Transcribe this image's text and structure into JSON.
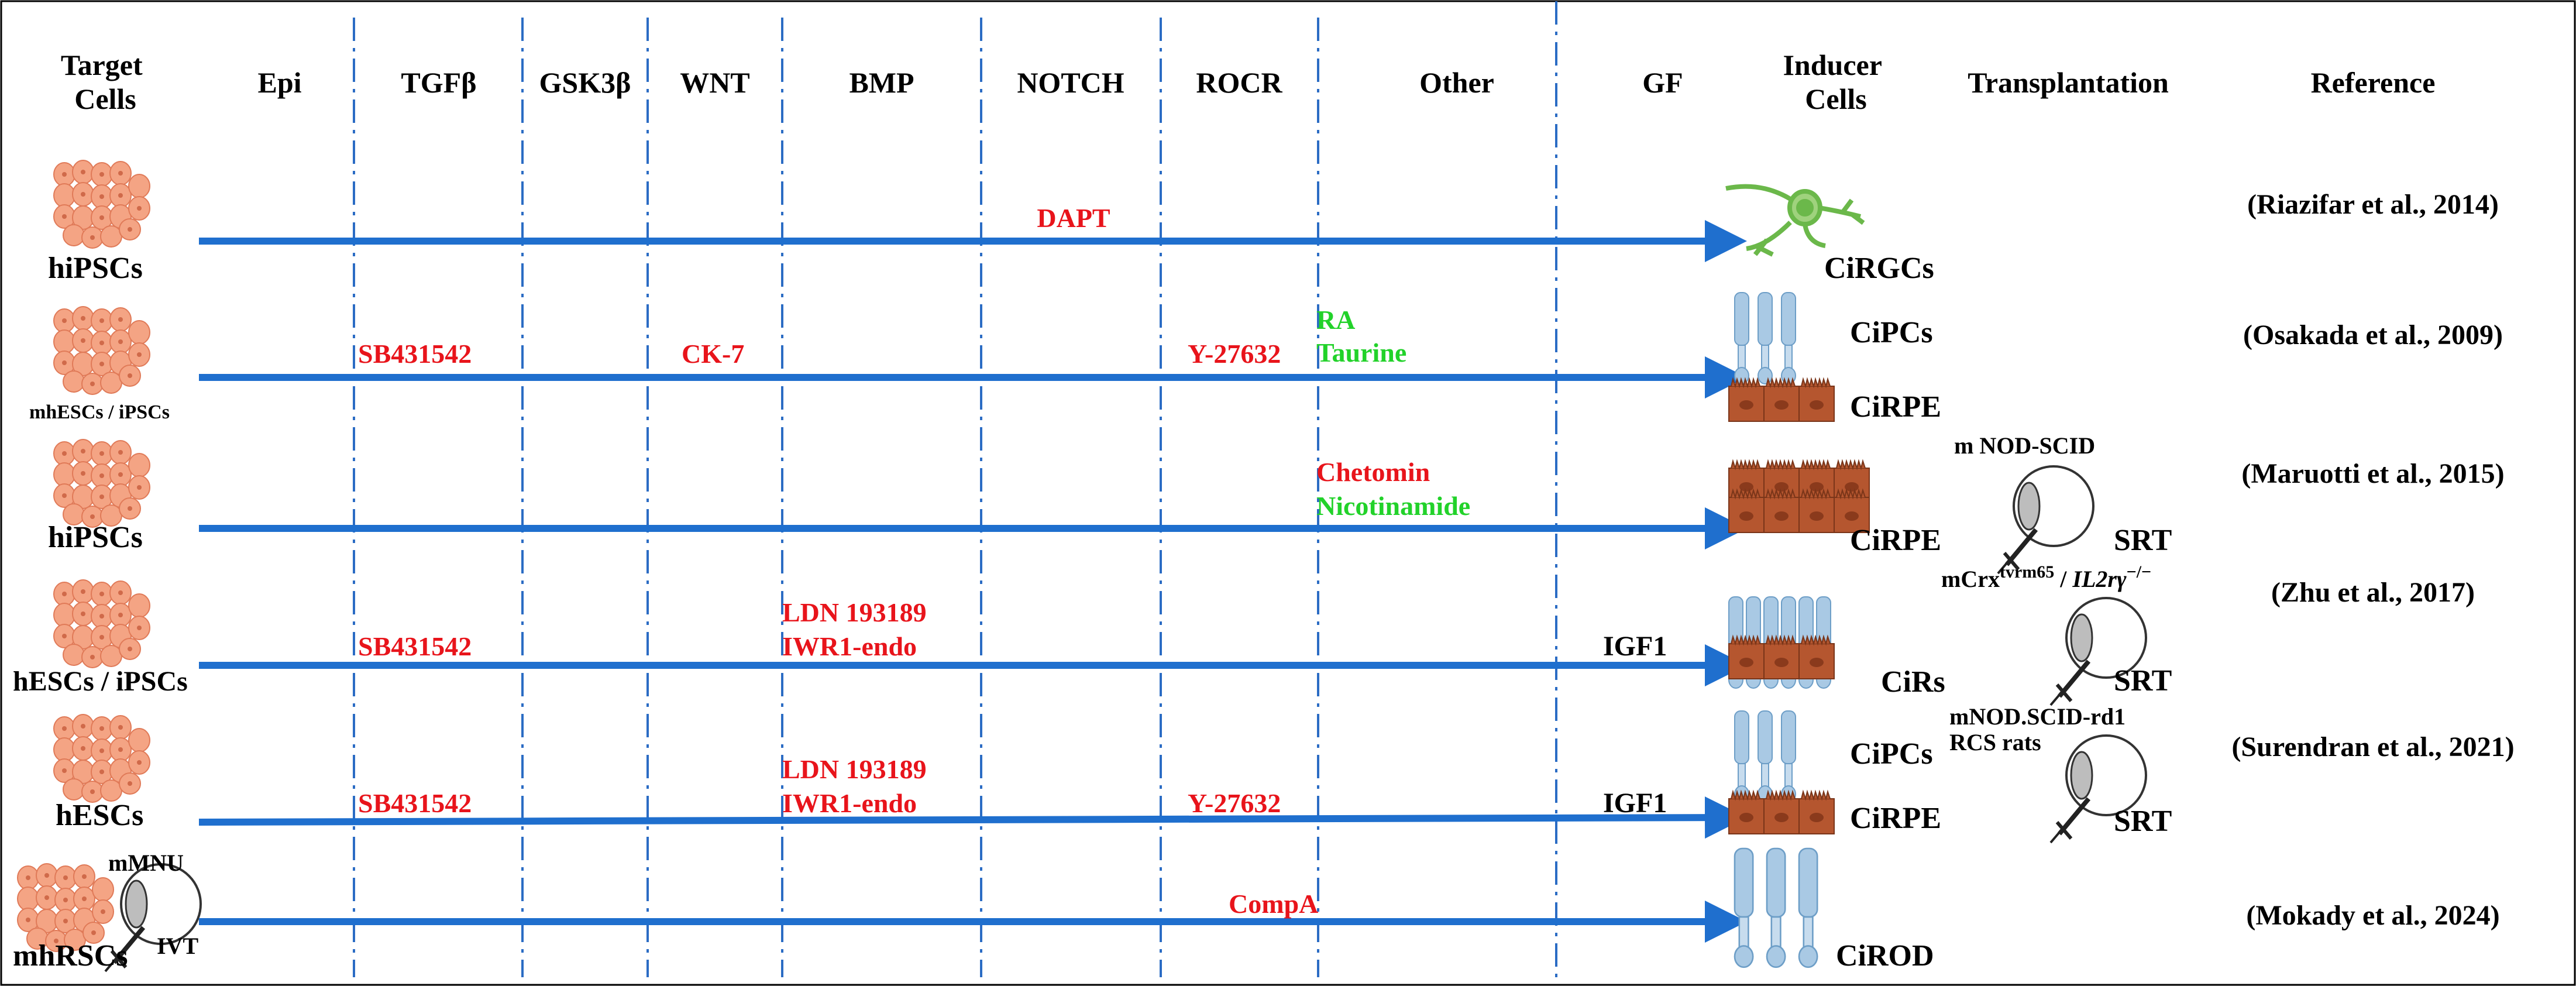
{
  "colors": {
    "inhibitor": "#e8141b",
    "activator": "#22d22a",
    "arrow": "#1f6fce",
    "divider": "#2b6cc4",
    "cell": "#f4a484",
    "rpe": "#b5562f",
    "photoreceptor": "#a9c9e4",
    "rgc": "#6bb84a"
  },
  "headers": {
    "target_cells": "Target Cells",
    "epi": "Epi",
    "tgfb": "TGFβ",
    "gsk3b": "GSK3β",
    "wnt": "WNT",
    "bmp": "BMP",
    "notch": "NOTCH",
    "rocr": "ROCR",
    "other": "Other",
    "gf": "GF",
    "inducer_cells": "Inducer Cells",
    "transplantation": "Transplantation",
    "reference": "Reference"
  },
  "rows": [
    {
      "source": "hiPSCs",
      "reagents": {
        "notch": "DAPT"
      },
      "outputs": [
        "CiRGCs"
      ],
      "reference": "(Riazifar et al., 2014)"
    },
    {
      "source": "mhESCs / iPSCs",
      "reagents": {
        "tgfb": "SB431542",
        "wnt": "CK-7",
        "rocr": "Y-27632",
        "other_1": "RA",
        "other_2": "Taurine"
      },
      "outputs": [
        "CiPCs",
        "CiRPE"
      ],
      "reference": "(Osakada et al., 2009)"
    },
    {
      "source": "hiPSCs",
      "reagents": {
        "other_1": "Chetomin",
        "other_2": "Nicotinamide"
      },
      "outputs": [
        "CiRPE"
      ],
      "transplant": {
        "model": "m NOD-SCID",
        "route": "SRT"
      },
      "reference": "(Maruotti et al., 2015)"
    },
    {
      "source": "hESCs / iPSCs",
      "reagents": {
        "tgfb": "SB431542",
        "bmp_1": "LDN 193189",
        "bmp_2": "IWR1-endo",
        "gf": "IGF1"
      },
      "outputs": [
        "CiRs"
      ],
      "transplant": {
        "model_prefix": "mCrx",
        "model_sup1": "tvrm65",
        "model_mid": " / ",
        "model_gene": "IL2rγ",
        "model_sup2": "−/−",
        "route": "SRT"
      },
      "reference": "(Zhu et al., 2017)"
    },
    {
      "source": "hESCs",
      "reagents": {
        "tgfb": "SB431542",
        "bmp_1": "LDN 193189",
        "bmp_2": "IWR1-endo",
        "rocr": "Y-27632",
        "gf": "IGF1"
      },
      "outputs": [
        "CiPCs",
        "CiRPE"
      ],
      "transplant": {
        "model": "mNOD.SCID-rd1",
        "model_2": "RCS rats",
        "route": "SRT"
      },
      "reference": "(Surendran et al., 2021)"
    },
    {
      "source": "mhRSCs",
      "source_model": "mMNU",
      "source_route": "IVT",
      "reagents": {
        "rocr_left": "CompA"
      },
      "outputs": [
        "CiROD"
      ],
      "reference": "(Mokady et al., 2024)"
    }
  ]
}
